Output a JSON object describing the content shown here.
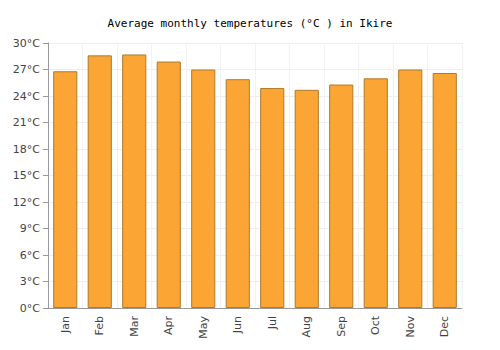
{
  "chart_data": {
    "type": "bar",
    "title": "Average monthly temperatures (°C ) in Ikire",
    "categories": [
      "Jan",
      "Feb",
      "Mar",
      "Apr",
      "May",
      "Jun",
      "Jul",
      "Aug",
      "Sep",
      "Oct",
      "Nov",
      "Dec"
    ],
    "values": [
      26.8,
      28.6,
      28.7,
      27.9,
      27.0,
      25.9,
      24.9,
      24.7,
      25.3,
      26.0,
      27.0,
      26.6
    ],
    "color": "#fba634",
    "ylim": [
      0,
      30
    ],
    "yticks": [
      {
        "value": 0,
        "label": "0°C"
      },
      {
        "value": 3,
        "label": "3°C"
      },
      {
        "value": 6,
        "label": "6°C"
      },
      {
        "value": 9,
        "label": "9°C"
      },
      {
        "value": 12,
        "label": "12°C"
      },
      {
        "value": 15,
        "label": "15°C"
      },
      {
        "value": 18,
        "label": "18°C"
      },
      {
        "value": 21,
        "label": "21°C"
      },
      {
        "value": 24,
        "label": "24°C"
      },
      {
        "value": 27,
        "label": "27°C"
      },
      {
        "value": 30,
        "label": "30°C"
      }
    ],
    "grid": true
  }
}
